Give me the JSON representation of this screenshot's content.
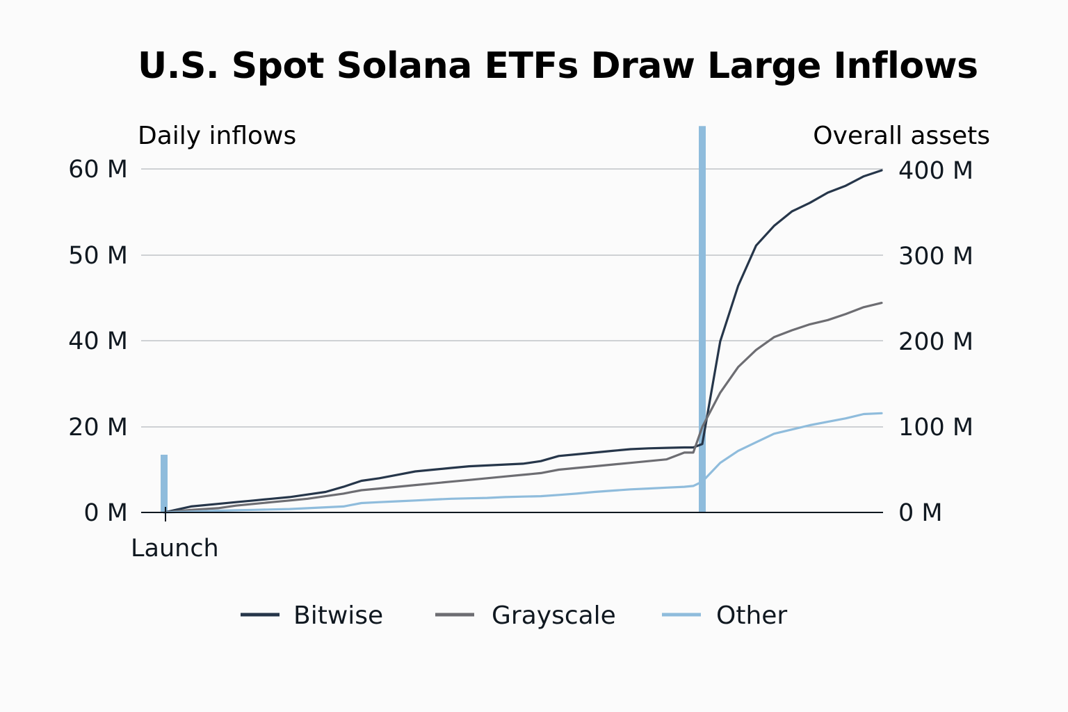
{
  "chart_data": {
    "type": "line",
    "title": "U.S. Spot Solana ETFs Draw Large Inflows",
    "left_axis": {
      "label": "Daily inflows",
      "range": [
        0,
        60
      ],
      "ticks": [
        {
          "value": 0,
          "label": "0 M"
        },
        {
          "value": 20,
          "label": "20 M"
        },
        {
          "value": 40,
          "label": "40 M"
        },
        {
          "value": 50,
          "label": "50 M"
        },
        {
          "value": 60,
          "label": "60 M"
        }
      ]
    },
    "right_axis": {
      "label": "Overall assets",
      "range": [
        0,
        400
      ],
      "ticks": [
        {
          "value": 0,
          "label": "0 M"
        },
        {
          "value": 100,
          "label": "100 M"
        },
        {
          "value": 200,
          "label": "200 M"
        },
        {
          "value": 300,
          "label": "300 M"
        },
        {
          "value": 400,
          "label": "400 M"
        }
      ]
    },
    "x_range": [
      0,
      40
    ],
    "x_tick": {
      "x": 0,
      "label": "Launch"
    },
    "grid": true,
    "legend_placement": "bottom",
    "daily_inflow_bars": [
      {
        "x": 0,
        "value": 13.5
      },
      {
        "x": 30,
        "value": 65
      }
    ],
    "colors": {
      "Bitwise": "#26364a",
      "Grayscale": "#6d6d72",
      "Other": "#8fbcdc",
      "inflow_bars": "#8fbcdc",
      "grid": "#bfc3c7",
      "axis": "#101820"
    },
    "series": [
      {
        "name": "Bitwise",
        "x": [
          0,
          1.5,
          3,
          4,
          5,
          6,
          7,
          8,
          9,
          10,
          11,
          12,
          13,
          14,
          15,
          16,
          17,
          18,
          19,
          20,
          21,
          22,
          23,
          24,
          25,
          26,
          27,
          28,
          29,
          29.5,
          30,
          31,
          32,
          33,
          34,
          35,
          36,
          37,
          38,
          39,
          40
        ],
        "values": [
          0,
          7,
          10,
          12,
          14,
          16,
          18,
          21,
          24,
          30,
          37,
          40,
          44,
          48,
          50,
          52,
          54,
          55,
          56,
          57,
          60,
          66,
          68,
          70,
          72,
          74,
          75,
          75.5,
          76,
          76,
          80,
          200,
          265,
          312,
          335,
          352,
          362,
          374,
          382,
          393,
          400
        ]
      },
      {
        "name": "Grayscale",
        "x": [
          0,
          1.5,
          3,
          4,
          5,
          6,
          7,
          8,
          9,
          10,
          11,
          12,
          13,
          14,
          15,
          16,
          17,
          18,
          19,
          20,
          21,
          22,
          23,
          24,
          25,
          26,
          27,
          28,
          29,
          29.5,
          30,
          31,
          32,
          33,
          34,
          35,
          36,
          37,
          38,
          39,
          40
        ],
        "values": [
          0,
          3,
          5,
          8,
          10,
          12,
          14,
          16,
          19,
          22,
          26,
          28,
          30,
          32,
          34,
          36,
          38,
          40,
          42,
          44,
          46,
          50,
          52,
          54,
          56,
          58,
          60,
          62,
          70,
          70,
          100,
          140,
          170,
          190,
          205,
          213,
          220,
          225,
          232,
          240,
          245
        ]
      },
      {
        "name": "Other",
        "x": [
          0,
          1.5,
          3,
          4,
          5,
          6,
          7,
          8,
          9,
          10,
          11,
          12,
          13,
          14,
          15,
          16,
          17,
          18,
          19,
          20,
          21,
          22,
          23,
          24,
          25,
          26,
          27,
          28,
          29,
          29.5,
          30,
          31,
          32,
          33,
          34,
          35,
          36,
          37,
          38,
          39,
          40
        ],
        "values": [
          0,
          1,
          2,
          2.5,
          3,
          3.5,
          4,
          5,
          6,
          7,
          11,
          12,
          13,
          14,
          15,
          16,
          16.5,
          17,
          18,
          18.5,
          19,
          20.5,
          22,
          24,
          25.5,
          27,
          28,
          29,
          30,
          31,
          36,
          58,
          72,
          82,
          92,
          97,
          102,
          106,
          110,
          115,
          116
        ]
      }
    ]
  }
}
